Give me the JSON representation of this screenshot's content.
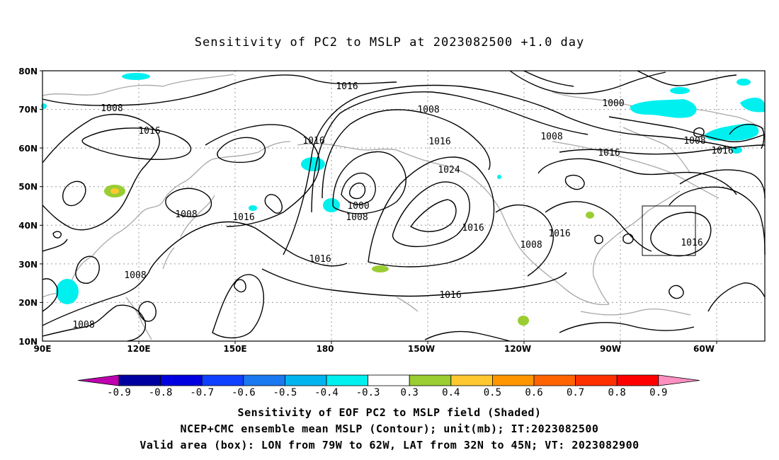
{
  "title": "Sensitivity of PC2 to MSLP at 2023082500 +1.0 day",
  "lat_labels": [
    "80N",
    "70N",
    "60N",
    "50N",
    "40N",
    "30N",
    "20N",
    "10N"
  ],
  "lon_labels": [
    "90E",
    "120E",
    "150E",
    "180",
    "150W",
    "120W",
    "90W",
    "60W"
  ],
  "contour_labels": [
    "1016",
    "1008",
    "1016",
    "1008",
    "1016",
    "1000",
    "1008",
    "1016",
    "1016",
    "1008",
    "1024",
    "1000",
    "1008",
    "1016",
    "1008",
    "1016",
    "1008",
    "1016",
    "1016",
    "1008",
    "1016",
    "1016",
    "1016",
    "1008"
  ],
  "colorbar": {
    "ticks": [
      "-0.9",
      "-0.8",
      "-0.7",
      "-0.6",
      "-0.5",
      "-0.4",
      "-0.3",
      "0.3",
      "0.4",
      "0.5",
      "0.6",
      "0.7",
      "0.8",
      "0.9"
    ],
    "colors": [
      "#c000b0",
      "#0000a0",
      "#0000e0",
      "#1040ff",
      "#1a78f0",
      "#00b4f0",
      "#00f0f0",
      "#ffffff",
      "#9acd32",
      "#ffc830",
      "#ff9600",
      "#ff6400",
      "#ff3000",
      "#ff0000",
      "#ff90c0"
    ]
  },
  "shading_colors": {
    "cyan": "#00f0f0",
    "green": "#9acd32",
    "yellow": "#ffc830",
    "coast": "#a8a8a8"
  },
  "captions": [
    "Sensitivity of EOF PC2 to MSLP field (Shaded)",
    "NCEP+CMC ensemble mean MSLP (Contour); unit(mb); IT:2023082500",
    "Valid area (box): LON from 79W to 62W, LAT from 32N to 45N; VT: 2023082900"
  ]
}
